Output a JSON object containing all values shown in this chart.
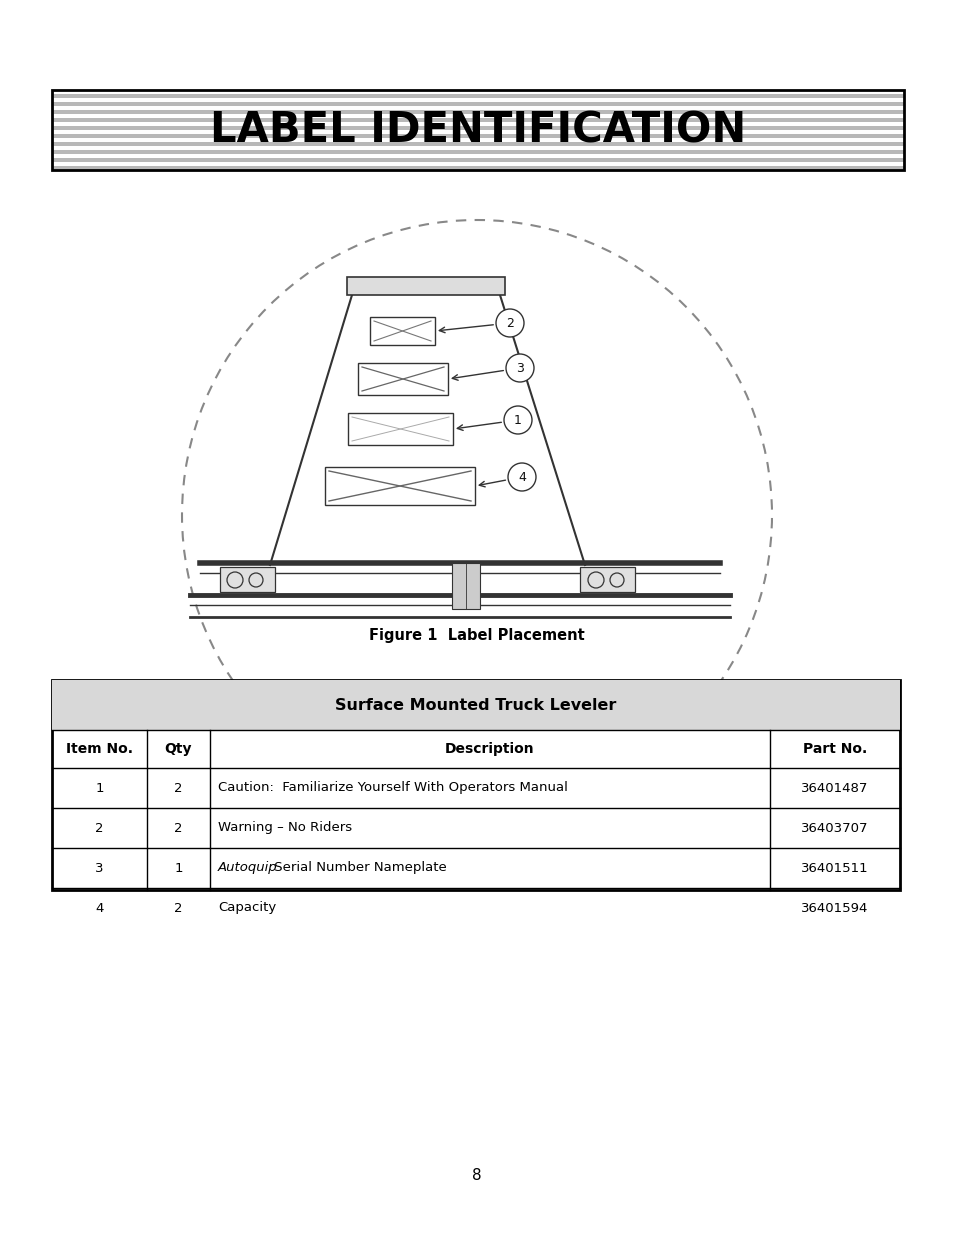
{
  "title": "LABEL IDENTIFICATION",
  "figure_caption": "Figure 1  Label Placement",
  "page_number": "8",
  "table_header": "Surface Mounted Truck Leveler",
  "col_headers": [
    "Item No.",
    "Qty",
    "Description",
    "Part No."
  ],
  "table_rows": [
    [
      "1",
      "2",
      "Caution:  Familiarize Yourself With Operators Manual",
      "36401487"
    ],
    [
      "2",
      "2",
      "Warning – No Riders",
      "36403707"
    ],
    [
      "3",
      "1",
      "Autoquip Serial Number Nameplate",
      "36401511"
    ],
    [
      "4",
      "2",
      "Capacity",
      "36401594"
    ]
  ],
  "italic_word": "Autoquip",
  "bg_color": "#ffffff",
  "text_color": "#000000",
  "title_stripe_light": "#ffffff",
  "title_stripe_dark": "#b8b8b8",
  "n_stripes": 20,
  "title_fontsize": 30,
  "caption_fontsize": 10,
  "table_header_fontsize": 11,
  "col_header_fontsize": 10,
  "row_fontsize": 9.5,
  "page_fontsize": 11,
  "diagram_color": "#333333",
  "callout_color": "#444444",
  "circle_dashes": [
    4,
    4
  ]
}
